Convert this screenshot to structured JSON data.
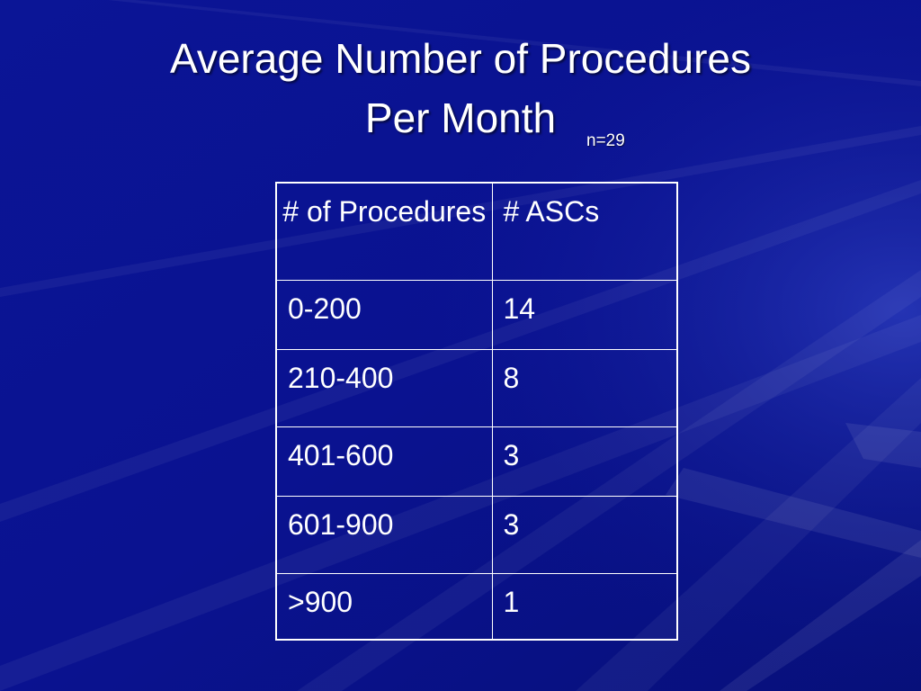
{
  "slide": {
    "title_line1": "Average Number of Procedures",
    "title_line2": "Per Month",
    "sample_note": "n=29",
    "background_color": "#0a1290"
  },
  "table": {
    "headers": [
      "# of Procedures",
      "# ASCs"
    ],
    "rows": [
      [
        "0-200",
        "14"
      ],
      [
        "210-400",
        "8"
      ],
      [
        "401-600",
        "3"
      ],
      [
        "601-900",
        "3"
      ],
      [
        ">900",
        "1"
      ]
    ]
  }
}
